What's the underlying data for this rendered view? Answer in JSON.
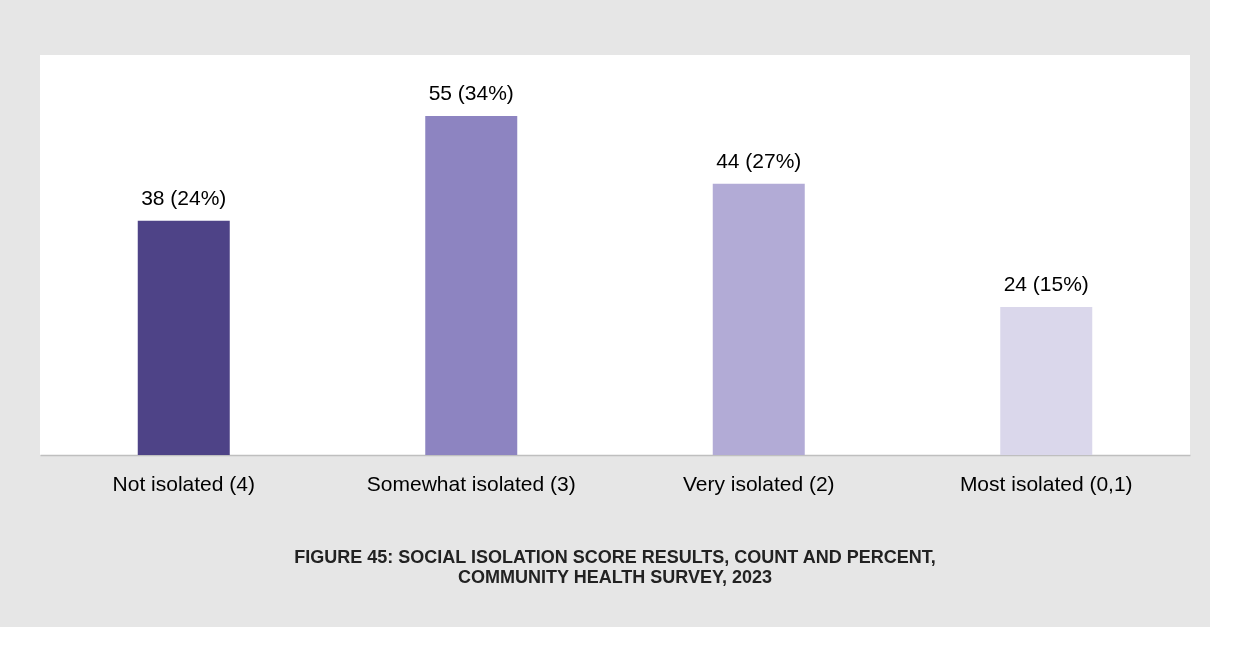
{
  "chart_data": {
    "type": "bar",
    "title": "FIGURE 45: SOCIAL ISOLATION SCORE RESULTS, COUNT AND PERCENT, COMMUNITY HEALTH SURVEY, 2023",
    "categories": [
      "Not isolated (4)",
      "Somewhat isolated (3)",
      "Very isolated (2)",
      "Most isolated (0,1)"
    ],
    "values": [
      38,
      55,
      44,
      24
    ],
    "colors": [
      "#4e4387",
      "#8d84c1",
      "#b2abd6",
      "#dad7eb"
    ],
    "value_labels": [
      "38 (24%)",
      "55 (34%)",
      "44 (27%)",
      "24 (15%)"
    ],
    "grid": false,
    "legend": false
  }
}
